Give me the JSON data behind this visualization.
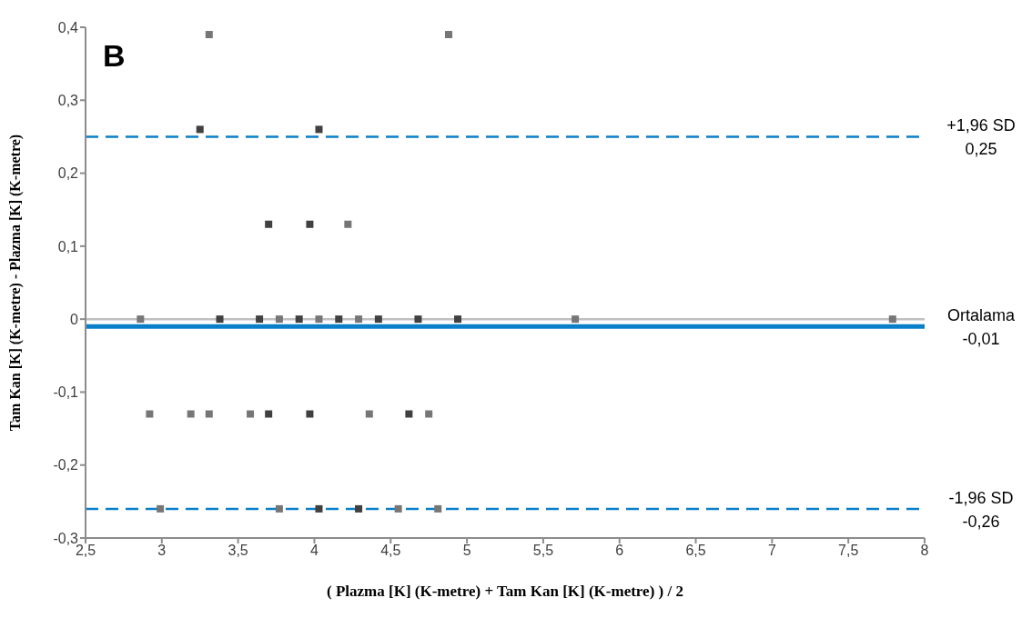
{
  "chart_data": {
    "type": "scatter",
    "xlabel": "( Plazma [K] (K-metre) + Tam Kan [K] (K-metre) ) / 2",
    "ylabel": "Tam Kan [K] (K-metre) - Plazma [K] (K-metre)",
    "annotations": [
      "B"
    ],
    "marker": "square",
    "grid": false,
    "legend": false,
    "xlim": [
      2.5,
      8
    ],
    "xticks": [
      {
        "value": 2.5,
        "label": "2,5"
      },
      3,
      {
        "value": 3.5,
        "label": "3,5"
      },
      4,
      {
        "value": 4.5,
        "label": "4,5"
      },
      5,
      {
        "value": 5.5,
        "label": "5,5"
      },
      6,
      {
        "value": 6.5,
        "label": "6,5"
      },
      7,
      {
        "value": 7.5,
        "label": "7,5"
      },
      8
    ],
    "ylim": [
      -0.3,
      0.4
    ],
    "yticks": [
      {
        "value": -0.3,
        "label": "-0,3"
      },
      {
        "value": -0.2,
        "label": "-0,2"
      },
      {
        "value": -0.1,
        "label": "-0,1"
      },
      0,
      {
        "value": 0.1,
        "label": "0,1"
      },
      {
        "value": 0.2,
        "label": "0,2"
      },
      {
        "value": 0.3,
        "label": "0,3"
      },
      {
        "value": 0.4,
        "label": "0,4"
      }
    ],
    "series": [
      {
        "color": "#404040",
        "x": [
          3.38,
          3.64,
          3.9,
          4.16,
          4.42,
          4.68,
          4.94,
          3.7,
          3.97,
          4.62,
          4.03,
          4.29,
          3.7,
          3.97,
          3.25,
          4.03
        ],
        "values": [
          0,
          0,
          0,
          0,
          0,
          0,
          0,
          -0.13,
          -0.13,
          -0.13,
          -0.26,
          -0.26,
          0.13,
          0.13,
          0.26,
          0.26
        ]
      },
      {
        "color": "#767676",
        "x": [
          2.86,
          3.77,
          4.03,
          4.29,
          5.71,
          7.79,
          2.92,
          3.19,
          3.31,
          3.58,
          4.36,
          4.75,
          2.99,
          3.77,
          4.55,
          4.81,
          4.22,
          3.31,
          4.88
        ],
        "values": [
          0,
          0,
          0,
          0,
          0,
          0,
          -0.13,
          -0.13,
          -0.13,
          -0.13,
          -0.13,
          -0.13,
          -0.26,
          -0.26,
          -0.26,
          -0.26,
          0.13,
          0.39,
          0.39
        ]
      }
    ],
    "ref_lines": [
      {
        "axis": "y",
        "value": 0,
        "color": "#bfbfbf",
        "line_style": "solid"
      },
      {
        "axis": "y",
        "value": 0.25,
        "label": "+1,96 SD\n0,25",
        "color": "#0a7fc9",
        "line_style": "dashed"
      },
      {
        "axis": "y",
        "value": -0.01,
        "label": "Ortalama\n-0,01",
        "color": "#0a7fc9",
        "line_style": "solid"
      },
      {
        "axis": "y",
        "value": -0.26,
        "label": "-1,96 SD\n-0,26",
        "color": "#0a7fc9",
        "line_style": "dashed"
      }
    ]
  }
}
